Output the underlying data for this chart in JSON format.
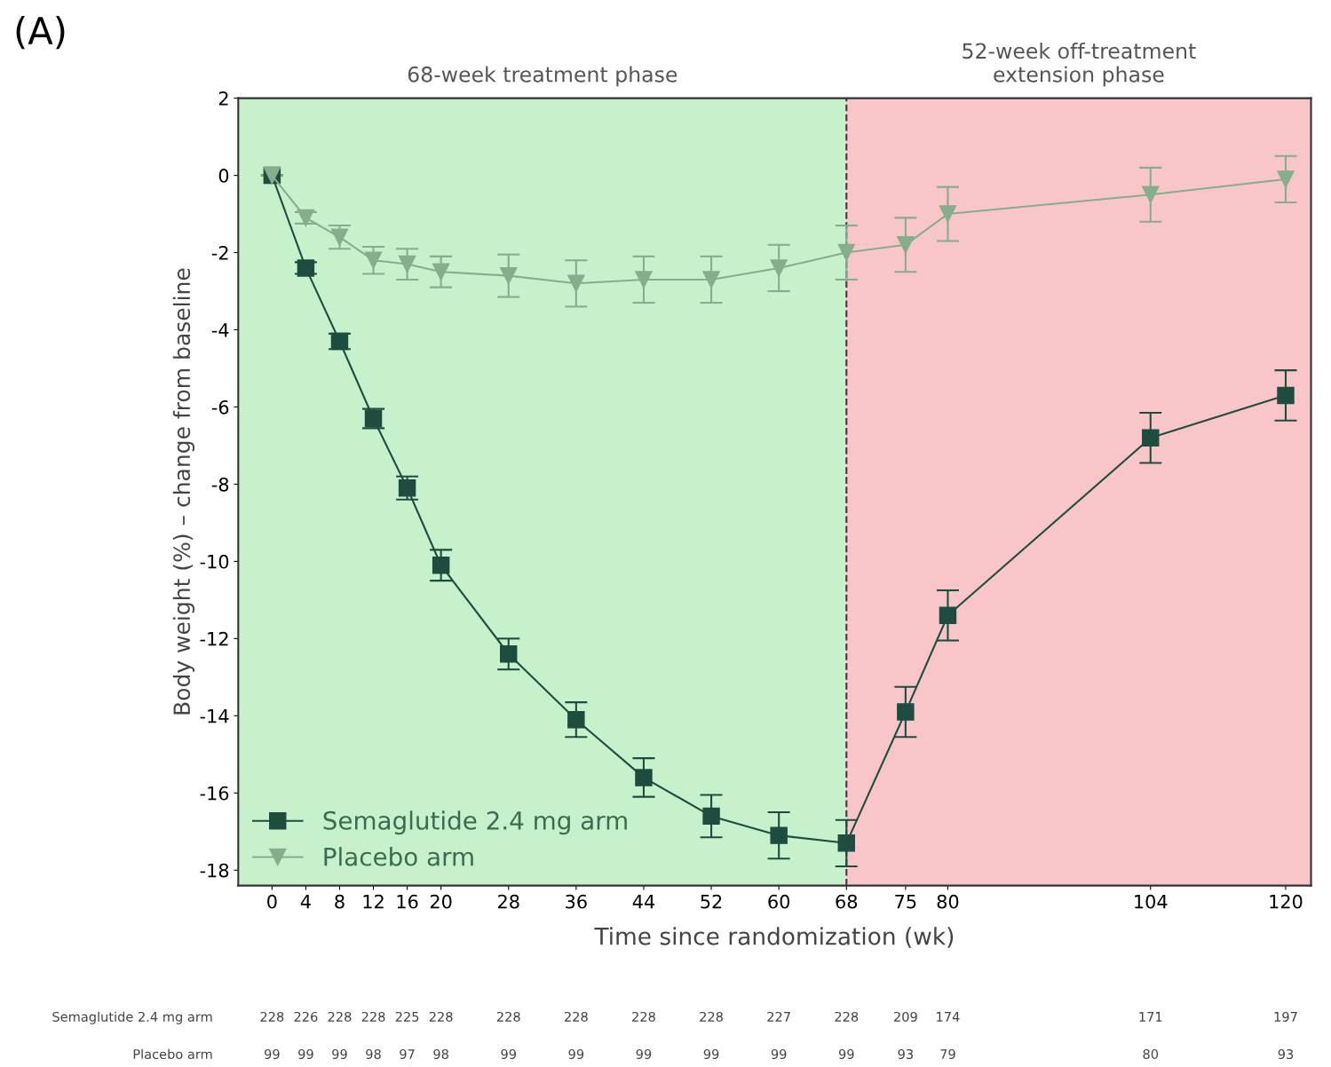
{
  "chart_data": {
    "type": "line",
    "title": "(A)",
    "xlabel": "Time since randomization (wk)",
    "ylabel": "Body weight (%) – change from baseline",
    "x": [
      0,
      4,
      8,
      12,
      16,
      20,
      28,
      36,
      44,
      52,
      60,
      68,
      75,
      80,
      104,
      120
    ],
    "series": [
      {
        "name": "Semaglutide 2.4 mg arm",
        "color": "#1e4d40",
        "marker": "square",
        "values": [
          0,
          -2.4,
          -4.3,
          -6.3,
          -8.1,
          -10.1,
          -12.4,
          -14.1,
          -15.6,
          -16.6,
          -17.1,
          -17.3,
          -13.9,
          -11.4,
          -6.8,
          -5.7
        ],
        "errors": [
          null,
          0.15,
          0.2,
          0.25,
          0.3,
          0.4,
          0.4,
          0.45,
          0.5,
          0.55,
          0.6,
          0.6,
          0.65,
          0.65,
          0.65,
          0.65
        ]
      },
      {
        "name": "Placebo arm",
        "color": "#86ad8c",
        "marker": "triangle",
        "values": [
          0,
          -1.1,
          -1.6,
          -2.2,
          -2.3,
          -2.5,
          -2.6,
          -2.8,
          -2.7,
          -2.7,
          -2.4,
          -2.0,
          -1.8,
          -1.0,
          -0.5,
          -0.1
        ],
        "errors": [
          null,
          0.15,
          0.3,
          0.35,
          0.4,
          0.4,
          0.55,
          0.6,
          0.6,
          0.6,
          0.6,
          0.7,
          0.7,
          0.7,
          0.7,
          0.6
        ]
      }
    ],
    "xlim": [
      -4,
      123
    ],
    "ylim": [
      -18.4,
      2
    ],
    "xticks": [
      0,
      4,
      8,
      12,
      16,
      20,
      28,
      36,
      44,
      52,
      60,
      68,
      75,
      80,
      104,
      120
    ],
    "yticks": [
      {
        "value": 2,
        "label": "2"
      },
      {
        "value": 0,
        "label": "0"
      },
      {
        "value": -2,
        "label": "-2"
      },
      {
        "value": -4,
        "label": "-4"
      },
      {
        "value": -6,
        "label": "-6"
      },
      {
        "value": -8,
        "label": "-8"
      },
      {
        "value": -10,
        "label": "-10"
      },
      {
        "value": -12,
        "label": "-12"
      },
      {
        "value": -14,
        "label": "-14"
      },
      {
        "value": -16,
        "label": "-16"
      },
      {
        "value": -18,
        "label": "-18"
      }
    ],
    "bands": [
      {
        "axis": "x",
        "from": -4,
        "to": 68,
        "label": "68-week treatment phase",
        "color": "#c6f1cb"
      },
      {
        "axis": "x",
        "from": 68,
        "to": 123,
        "label": "52-week off-treatment\nextension phase",
        "color": "#f8c6c8"
      }
    ],
    "ref_lines": [
      {
        "axis": "x",
        "value": 68,
        "color": "#5a2a4a",
        "line_style": "dashed"
      }
    ],
    "legend": "bottom left",
    "grid": false,
    "line_style": "solid",
    "annotations": [
      "Semaglutide 2.4 mg arm",
      "228",
      "226",
      "228",
      "228",
      "225",
      "228",
      "228",
      "228",
      "228",
      "228",
      "227",
      "228",
      "209",
      "174",
      "171",
      "197",
      "Placebo arm",
      "99",
      "99",
      "99",
      "98",
      "97",
      "98",
      "99",
      "99",
      "99",
      "99",
      "99",
      "99",
      "93",
      "79",
      "80",
      "93"
    ]
  }
}
